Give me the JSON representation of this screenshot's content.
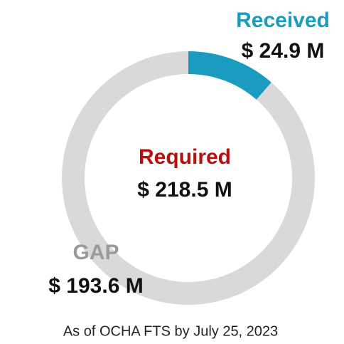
{
  "chart_data": {
    "type": "donut",
    "categories": [
      "Received",
      "GAP"
    ],
    "values": [
      24.9,
      193.6
    ],
    "value_labels": [
      "$ 24.9 M",
      "$ 193.6 M"
    ],
    "colors": [
      "#1a9bc0",
      "#d9d9d9"
    ],
    "label_colors": [
      "#1a9bc0",
      "#9a9a9a"
    ],
    "total_name": "Required",
    "total": 218.5,
    "total_label": "$ 218.5 M",
    "total_color": "#b80f0f",
    "footnote": "As of OCHA FTS by July 25, 2023"
  }
}
